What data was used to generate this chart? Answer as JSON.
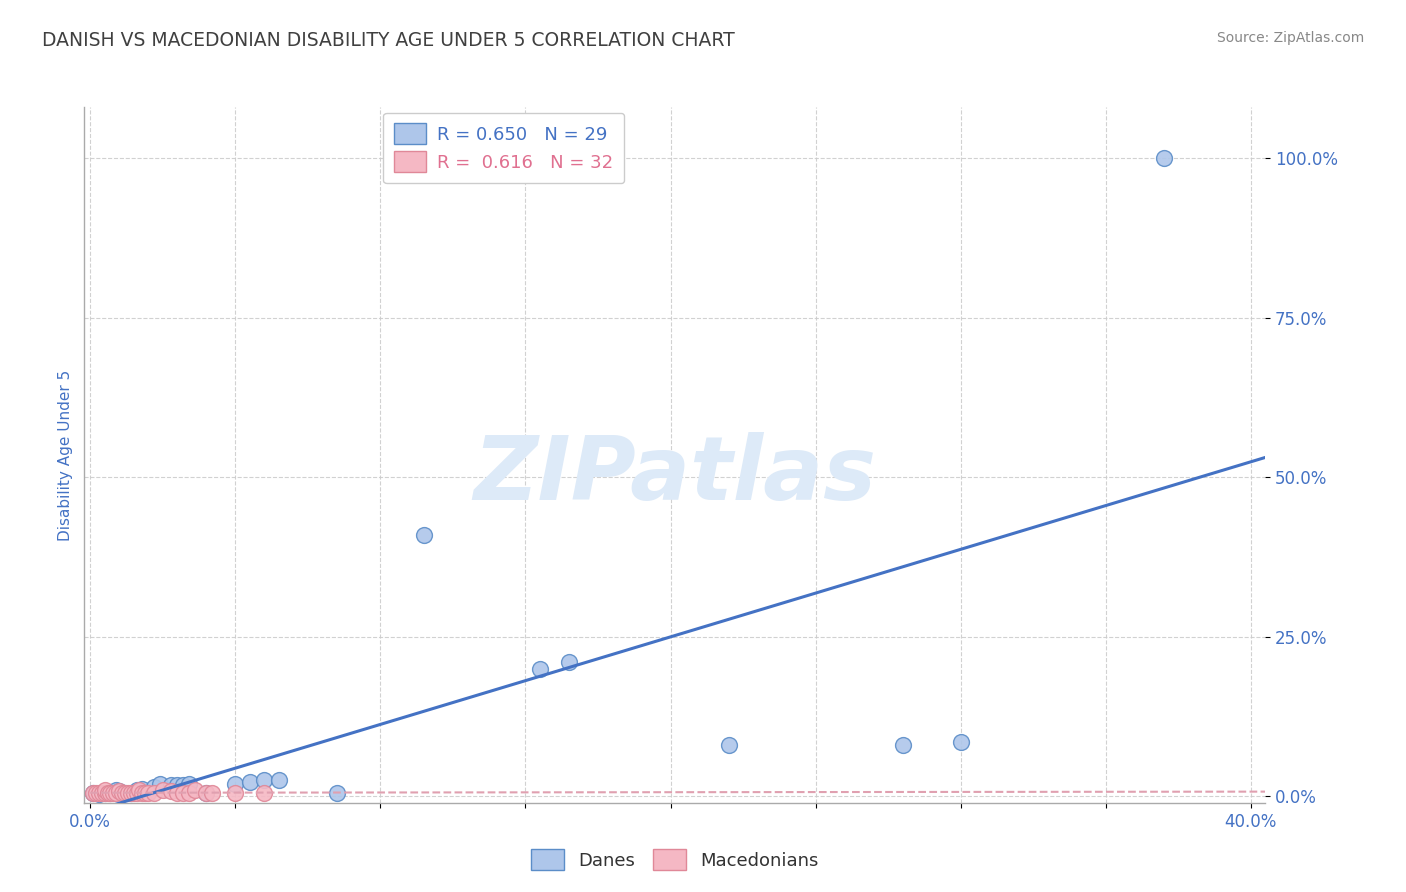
{
  "title": "DANISH VS MACEDONIAN DISABILITY AGE UNDER 5 CORRELATION CHART",
  "source_text": "Source: ZipAtlas.com",
  "ylabel": "Disability Age Under 5",
  "xlim": [
    -0.002,
    0.405
  ],
  "ylim": [
    -0.01,
    1.08
  ],
  "xticks": [
    0.0,
    0.05,
    0.1,
    0.15,
    0.2,
    0.25,
    0.3,
    0.35,
    0.4
  ],
  "yticks": [
    0.0,
    0.25,
    0.5,
    0.75,
    1.0
  ],
  "ytick_labels": [
    "0.0%",
    "25.0%",
    "50.0%",
    "75.0%",
    "100.0%"
  ],
  "xtick_labels": [
    "0.0%",
    "",
    "",
    "",
    "",
    "",
    "",
    "",
    "40.0%"
  ],
  "danish_points": [
    [
      0.001,
      0.005
    ],
    [
      0.003,
      0.004
    ],
    [
      0.005,
      0.005
    ],
    [
      0.007,
      0.005
    ],
    [
      0.009,
      0.01
    ],
    [
      0.01,
      0.008
    ],
    [
      0.012,
      0.005
    ],
    [
      0.014,
      0.005
    ],
    [
      0.016,
      0.01
    ],
    [
      0.018,
      0.012
    ],
    [
      0.022,
      0.015
    ],
    [
      0.024,
      0.02
    ],
    [
      0.028,
      0.018
    ],
    [
      0.03,
      0.018
    ],
    [
      0.032,
      0.018
    ],
    [
      0.034,
      0.02
    ],
    [
      0.04,
      0.005
    ],
    [
      0.05,
      0.02
    ],
    [
      0.055,
      0.022
    ],
    [
      0.06,
      0.025
    ],
    [
      0.065,
      0.025
    ],
    [
      0.085,
      0.005
    ],
    [
      0.115,
      0.41
    ],
    [
      0.155,
      0.2
    ],
    [
      0.165,
      0.21
    ],
    [
      0.28,
      0.08
    ],
    [
      0.3,
      0.085
    ],
    [
      0.37,
      1.0
    ],
    [
      0.22,
      0.08
    ]
  ],
  "macedonian_points": [
    [
      0.001,
      0.005
    ],
    [
      0.002,
      0.005
    ],
    [
      0.003,
      0.005
    ],
    [
      0.004,
      0.005
    ],
    [
      0.005,
      0.005
    ],
    [
      0.005,
      0.01
    ],
    [
      0.006,
      0.005
    ],
    [
      0.007,
      0.005
    ],
    [
      0.008,
      0.005
    ],
    [
      0.009,
      0.005
    ],
    [
      0.01,
      0.008
    ],
    [
      0.011,
      0.005
    ],
    [
      0.012,
      0.005
    ],
    [
      0.013,
      0.005
    ],
    [
      0.014,
      0.005
    ],
    [
      0.015,
      0.005
    ],
    [
      0.016,
      0.005
    ],
    [
      0.017,
      0.01
    ],
    [
      0.018,
      0.005
    ],
    [
      0.019,
      0.005
    ],
    [
      0.02,
      0.005
    ],
    [
      0.022,
      0.005
    ],
    [
      0.025,
      0.01
    ],
    [
      0.028,
      0.008
    ],
    [
      0.03,
      0.005
    ],
    [
      0.032,
      0.005
    ],
    [
      0.034,
      0.005
    ],
    [
      0.036,
      0.01
    ],
    [
      0.04,
      0.005
    ],
    [
      0.042,
      0.005
    ],
    [
      0.05,
      0.005
    ],
    [
      0.06,
      0.005
    ]
  ],
  "danish_R": 0.65,
  "danish_N": 29,
  "macedonian_R": 0.616,
  "macedonian_N": 32,
  "danish_color": "#aec6ea",
  "macedonian_color": "#f5b8c4",
  "danish_edge_color": "#5b8dc8",
  "macedonian_edge_color": "#e08898",
  "danish_line_color": "#4472c4",
  "macedonian_line_color": "#e0a0b0",
  "background_color": "#ffffff",
  "grid_color": "#cccccc",
  "title_color": "#404040",
  "watermark_color": "#ddeaf8",
  "axis_label_color": "#4472c4",
  "tick_color": "#4472c4",
  "source_color": "#888888",
  "legend_danish_text_color": "#4472c4",
  "legend_mac_text_color": "#e07090"
}
